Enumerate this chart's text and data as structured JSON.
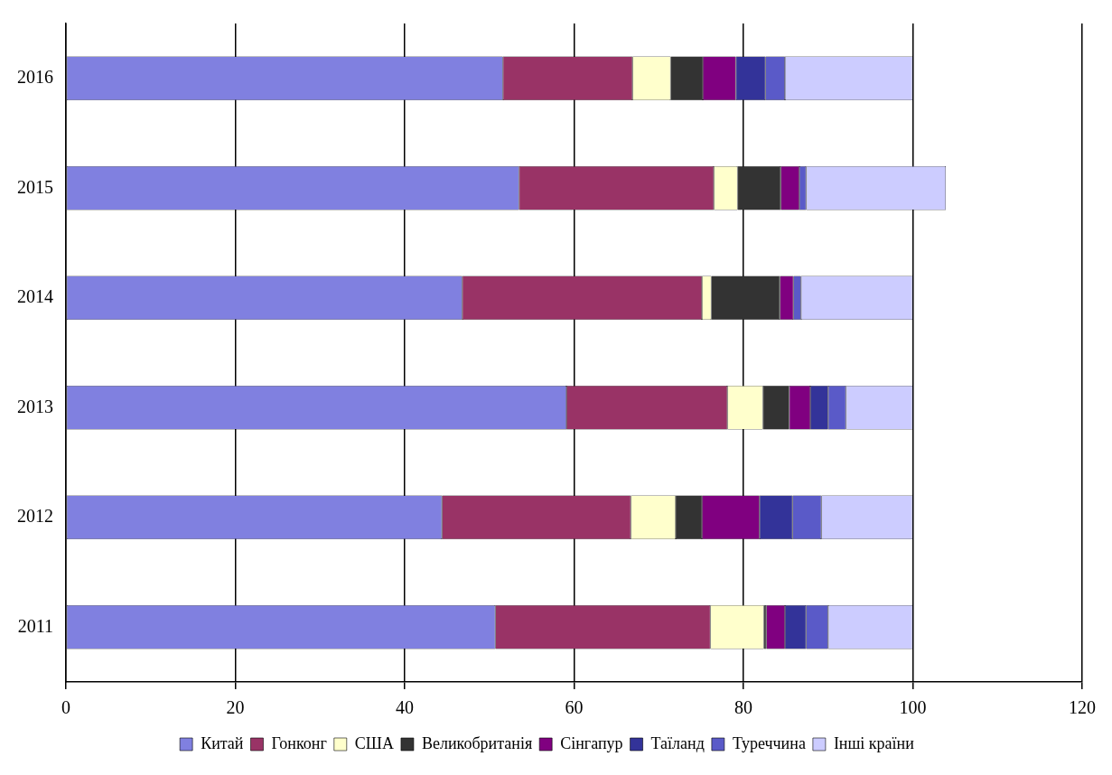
{
  "chart_data": {
    "type": "bar",
    "orientation": "horizontal",
    "stacked": true,
    "categories": [
      "2016",
      "2015",
      "2014",
      "2013",
      "2012",
      "2011"
    ],
    "series": [
      {
        "name": "Китай",
        "color": "#8080e0",
        "values": [
          51.6,
          53.5,
          46.8,
          59.1,
          44.4,
          50.7
        ]
      },
      {
        "name": "Гонконг",
        "color": "#993366",
        "values": [
          15.3,
          23.0,
          28.3,
          19.0,
          22.3,
          25.4
        ]
      },
      {
        "name": "США",
        "color": "#ffffcc",
        "values": [
          4.5,
          2.8,
          1.1,
          4.2,
          5.3,
          6.3
        ]
      },
      {
        "name": "Великобританія",
        "color": "#333333",
        "values": [
          3.8,
          5.1,
          8.1,
          3.1,
          3.1,
          0.3
        ]
      },
      {
        "name": "Сінгапур",
        "color": "#800080",
        "values": [
          3.9,
          2.2,
          1.6,
          2.5,
          6.8,
          2.2
        ]
      },
      {
        "name": "Таїланд",
        "color": "#333399",
        "values": [
          3.5,
          0,
          0,
          2.1,
          3.9,
          2.5
        ]
      },
      {
        "name": "Туреччина",
        "color": "#5a5ac8",
        "values": [
          2.3,
          0.8,
          0.9,
          2.1,
          3.4,
          2.6
        ]
      },
      {
        "name": "Інші країни",
        "color": "#ccccff",
        "values": [
          15.1,
          16.5,
          13.2,
          7.9,
          10.8,
          10.0
        ]
      }
    ],
    "xlim": [
      0,
      120
    ],
    "xticks": [
      0,
      20,
      40,
      60,
      80,
      100,
      120
    ],
    "grid": "x",
    "legend": "bottom"
  }
}
